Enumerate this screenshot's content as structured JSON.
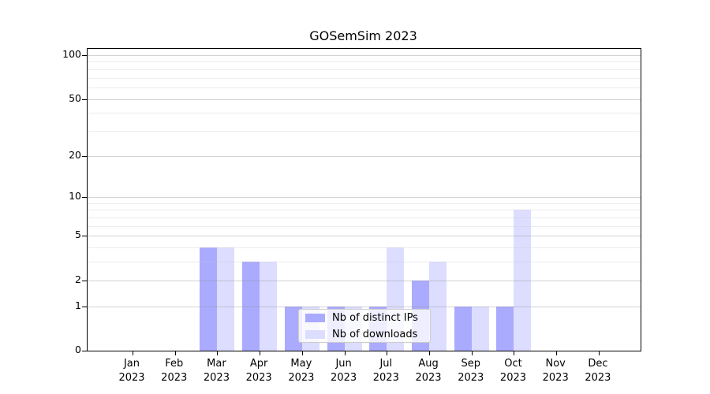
{
  "chart_data": {
    "type": "bar",
    "title": "GOSemSim 2023",
    "categories": [
      "Jan",
      "Feb",
      "Mar",
      "Apr",
      "May",
      "Jun",
      "Jul",
      "Aug",
      "Sep",
      "Oct",
      "Nov",
      "Dec"
    ],
    "category_year": "2023",
    "series": [
      {
        "name": "Nb of distinct IPs",
        "color": "#aaaaff",
        "values": [
          0,
          0,
          4,
          3,
          1,
          1,
          1,
          2,
          1,
          1,
          0,
          0
        ]
      },
      {
        "name": "Nb of downloads",
        "color": "#ddddff",
        "values": [
          0,
          0,
          4,
          3,
          1,
          1,
          4,
          3,
          1,
          8,
          0,
          0
        ]
      }
    ],
    "xlabel": "",
    "ylabel": "",
    "yscale": "log1p",
    "ylim": [
      0,
      110
    ],
    "y_major_ticks": [
      0,
      1,
      2,
      5,
      10,
      20,
      50,
      100
    ],
    "y_minor_ticks": [
      3,
      4,
      6,
      7,
      8,
      9,
      30,
      40,
      60,
      70,
      80,
      90
    ],
    "grid": "horizontal-on",
    "legend_position": "inside-lower-center"
  },
  "colors": {
    "spine": "#000000",
    "grid_major": "rgba(150,150,150,0.42)",
    "grid_minor": "rgba(200,200,200,0.35)",
    "tick_text": "#000000",
    "legend_border": "#cccccc",
    "legend_background": "rgba(255,255,255,0.8)"
  }
}
